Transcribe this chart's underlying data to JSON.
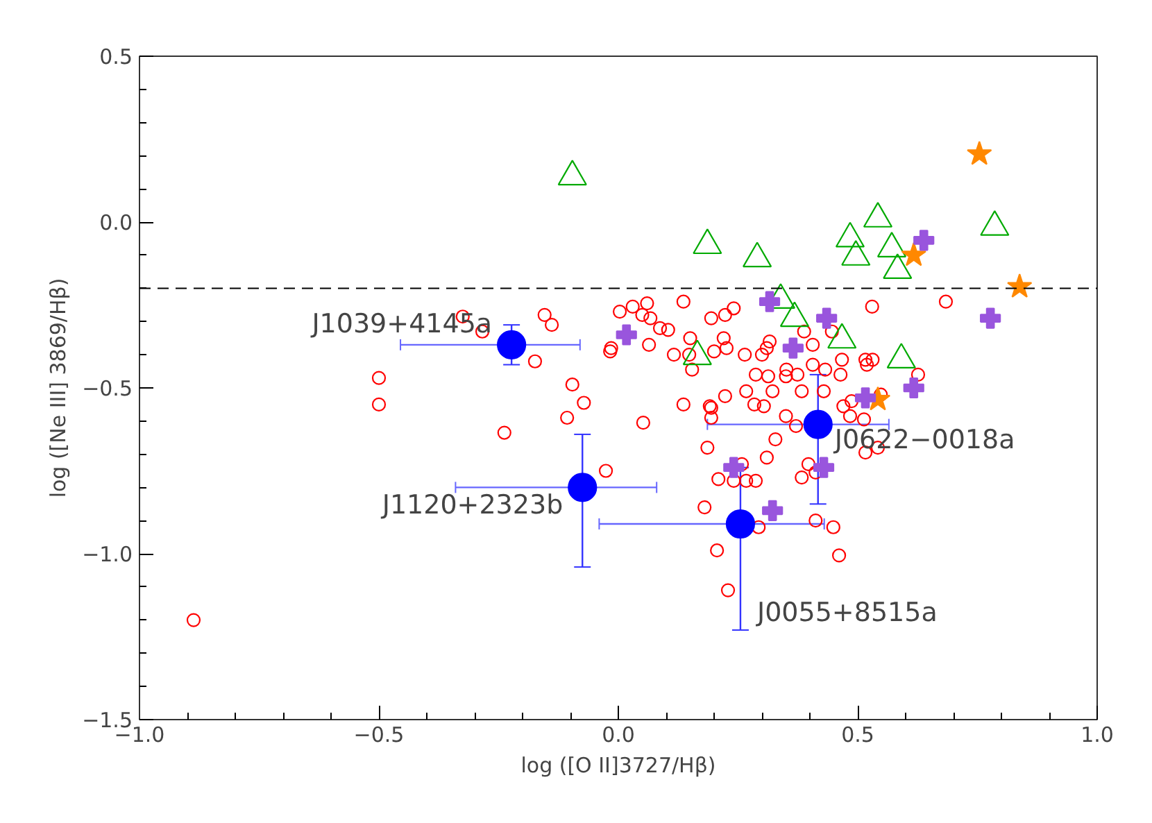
{
  "chart_data": {
    "type": "scatter",
    "xlabel": "log ([O II]3727/Hβ)",
    "ylabel": "log ([Ne III] 3869/Hβ)",
    "xlim": [
      -1.0,
      1.0
    ],
    "ylim": [
      -1.5,
      0.5
    ],
    "xticks": [
      {
        "value": -1.0,
        "label": "−1.0"
      },
      {
        "value": -0.5,
        "label": "−0.5"
      },
      {
        "value": 0.0,
        "label": "0.0"
      },
      {
        "value": 0.5,
        "label": "0.5"
      },
      {
        "value": 1.0,
        "label": "1.0"
      }
    ],
    "yticks": [
      {
        "value": -1.5,
        "label": "−1.5"
      },
      {
        "value": -1.0,
        "label": "−1.0"
      },
      {
        "value": -0.5,
        "label": "−0.5"
      },
      {
        "value": 0.0,
        "label": "0.0"
      },
      {
        "value": 0.5,
        "label": "0.5"
      }
    ],
    "grid": false,
    "ref_lines": [
      {
        "axis": "y",
        "value": -0.2,
        "color": "#000000",
        "line_style": "dashed"
      }
    ],
    "series": [
      {
        "color": "#ff0000",
        "marker": "circle",
        "x": [
          -0.325,
          -0.284,
          -0.154,
          -0.139,
          -0.174,
          -0.5,
          -0.5,
          -0.238,
          -0.096,
          -0.072,
          -0.107,
          -0.026,
          -0.887,
          0.003,
          -0.017,
          0.03,
          0.06,
          0.05,
          0.067,
          0.087,
          0.104,
          0.136,
          0.064,
          -0.015,
          0.116,
          0.15,
          0.148,
          0.154,
          0.194,
          0.223,
          0.241,
          0.22,
          0.226,
          0.2,
          0.264,
          0.316,
          0.31,
          0.3,
          0.287,
          0.313,
          0.322,
          0.351,
          0.35,
          0.374,
          0.388,
          0.406,
          0.446,
          0.467,
          0.406,
          0.432,
          0.464,
          0.516,
          0.531,
          0.519,
          0.53,
          0.684,
          0.626,
          0.383,
          0.429,
          0.267,
          0.223,
          0.136,
          0.191,
          0.284,
          0.304,
          0.47,
          0.487,
          0.548,
          0.194,
          0.194,
          0.052,
          0.35,
          0.371,
          0.484,
          0.513,
          0.186,
          0.328,
          0.31,
          0.516,
          0.542,
          0.397,
          0.412,
          0.383,
          0.258,
          0.209,
          0.241,
          0.267,
          0.287,
          0.18,
          0.293,
          0.412,
          0.449,
          0.206,
          0.461,
          0.229
        ],
        "values": [
          -0.285,
          -0.33,
          -0.28,
          -0.31,
          -0.42,
          -0.47,
          -0.55,
          -0.635,
          -0.49,
          -0.545,
          -0.59,
          -0.75,
          -1.2,
          -0.27,
          -0.39,
          -0.255,
          -0.245,
          -0.28,
          -0.29,
          -0.32,
          -0.325,
          -0.24,
          -0.37,
          -0.38,
          -0.4,
          -0.35,
          -0.4,
          -0.445,
          -0.29,
          -0.28,
          -0.26,
          -0.35,
          -0.38,
          -0.39,
          -0.4,
          -0.36,
          -0.38,
          -0.4,
          -0.46,
          -0.465,
          -0.51,
          -0.445,
          -0.465,
          -0.46,
          -0.33,
          -0.37,
          -0.33,
          -0.415,
          -0.43,
          -0.445,
          -0.46,
          -0.415,
          -0.415,
          -0.43,
          -0.255,
          -0.24,
          -0.46,
          -0.51,
          -0.51,
          -0.51,
          -0.525,
          -0.55,
          -0.555,
          -0.55,
          -0.555,
          -0.555,
          -0.54,
          -0.52,
          -0.56,
          -0.59,
          -0.605,
          -0.585,
          -0.615,
          -0.585,
          -0.595,
          -0.68,
          -0.655,
          -0.71,
          -0.695,
          -0.68,
          -0.73,
          -0.755,
          -0.77,
          -0.73,
          -0.775,
          -0.78,
          -0.78,
          -0.78,
          -0.86,
          -0.92,
          -0.9,
          -0.92,
          -0.99,
          -1.005,
          -1.11
        ]
      },
      {
        "color": "#00aa00",
        "marker": "triangle",
        "x": [
          -0.096,
          0.186,
          0.29,
          0.542,
          0.484,
          0.496,
          0.571,
          0.583,
          0.786,
          0.339,
          0.368,
          0.165,
          0.467,
          0.591
        ],
        "values": [
          0.137,
          -0.07,
          -0.11,
          0.01,
          -0.05,
          -0.105,
          -0.08,
          -0.145,
          -0.015,
          -0.235,
          -0.29,
          -0.405,
          -0.355,
          -0.415
        ]
      },
      {
        "color": "#ff8800",
        "marker": "star",
        "x": [
          0.754,
          0.617,
          0.838,
          0.542
        ],
        "values": [
          0.205,
          -0.1,
          -0.195,
          -0.535
        ]
      },
      {
        "color": "#9955dd",
        "marker": "cross",
        "x": [
          0.638,
          0.316,
          0.017,
          0.435,
          0.365,
          0.777,
          0.617,
          0.516,
          0.429,
          0.322,
          0.241
        ],
        "values": [
          -0.055,
          -0.24,
          -0.34,
          -0.29,
          -0.38,
          -0.29,
          -0.5,
          -0.53,
          -0.74,
          -0.87,
          -0.74
        ]
      },
      {
        "color": "#0000ff",
        "marker": "circle",
        "x": [
          -0.223,
          -0.075,
          0.417,
          0.255
        ],
        "values": [
          -0.37,
          -0.8,
          -0.61,
          -0.91
        ],
        "xerrors": [
          [
            -0.455,
            -0.08
          ],
          [
            -0.34,
            0.08
          ],
          [
            0.186,
            0.565
          ],
          [
            -0.04,
            0.43
          ]
        ],
        "errors": [
          [
            -0.43,
            -0.31
          ],
          [
            -1.04,
            -0.64
          ],
          [
            -0.85,
            -0.46
          ],
          [
            -1.23,
            -0.74
          ]
        ]
      }
    ],
    "annotations": [
      {
        "text": "J1039+4145a",
        "x": -0.223,
        "y": -0.37
      },
      {
        "text": "J1120+2323b",
        "x": -0.075,
        "y": -0.8
      },
      {
        "text": "J0622−0018a",
        "x": 0.417,
        "y": -0.61
      },
      {
        "text": "J0055+8515a",
        "x": 0.255,
        "y": -0.91
      }
    ]
  }
}
